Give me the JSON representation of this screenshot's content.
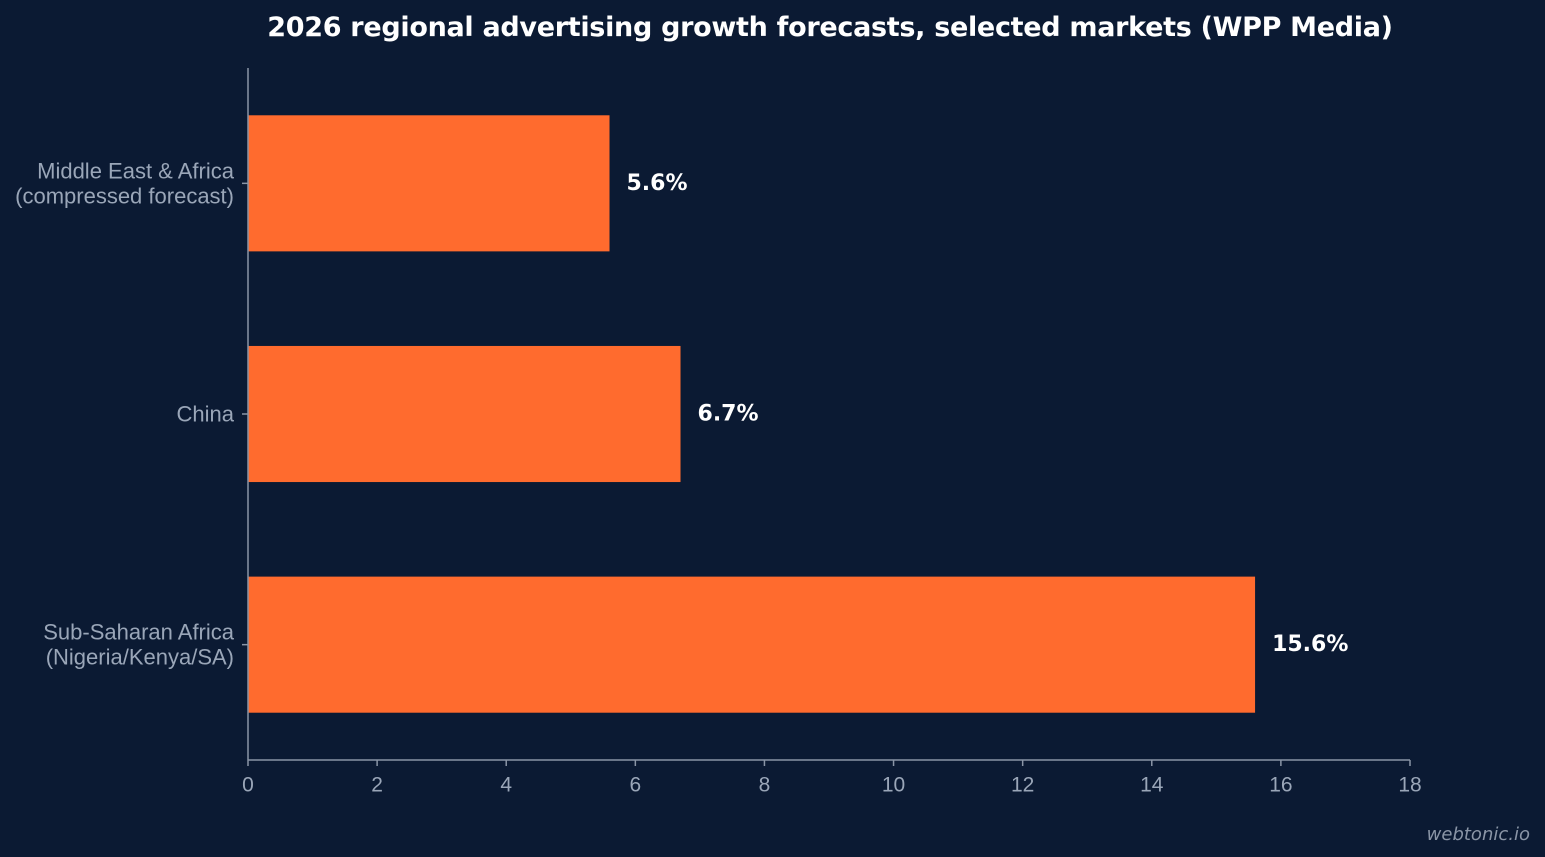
{
  "chart_data": {
    "type": "bar",
    "orientation": "horizontal",
    "title": "2026 regional advertising growth forecasts, selected markets (WPP Media)",
    "categories": [
      [
        "Middle East & Africa",
        "(compressed forecast)"
      ],
      [
        "China"
      ],
      [
        "Sub-Saharan Africa",
        "(Nigeria/Kenya/SA)"
      ]
    ],
    "values": [
      5.6,
      6.7,
      15.6
    ],
    "value_labels": [
      "5.6%",
      "6.7%",
      "15.6%"
    ],
    "xlim": [
      0,
      18
    ],
    "xticks": [
      0,
      2,
      4,
      6,
      8,
      10,
      12,
      14,
      16,
      18
    ],
    "xlabel": "",
    "ylabel": "",
    "grid": false,
    "colors": {
      "bar": "#ff6b2e",
      "background": "#0b1a33",
      "axis": "#8a95a6"
    }
  },
  "watermark": "webtonic.io"
}
